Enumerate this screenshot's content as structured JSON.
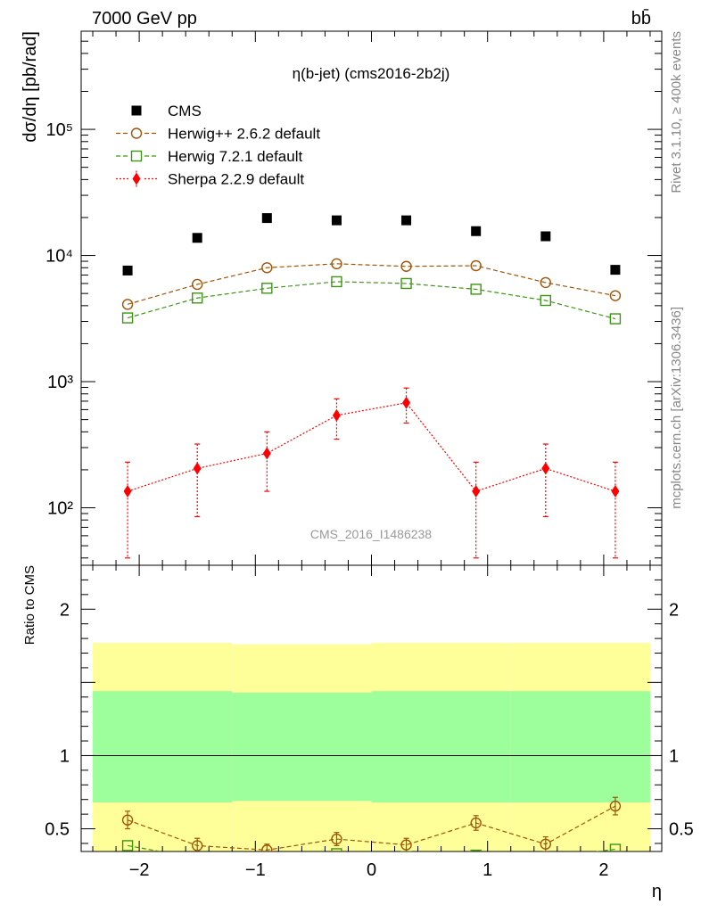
{
  "header": {
    "energy_label": "7000 GeV pp",
    "process_label": "bb̄"
  },
  "side_labels": {
    "rivet": "Rivet 3.1.10, ≥ 400k events",
    "mcplots": "mcplots.cern.ch [arXiv:1306.3436]"
  },
  "chart_data": [
    {
      "type": "scatter",
      "title": "η(b-jet) (cms2016-2b2j)",
      "watermark": "CMS_2016_I1486238",
      "xlabel": "η",
      "ylabel": "dσ/dη [pb/rad]",
      "yscale": "log",
      "xlim": [
        -2.5,
        2.5
      ],
      "ylim": [
        35,
        600000
      ],
      "x": [
        -2.1,
        -1.5,
        -0.9,
        -0.3,
        0.3,
        0.9,
        1.5,
        2.1
      ],
      "y_ticks": [
        {
          "value": 100,
          "label": "10²"
        },
        {
          "value": 1000,
          "label": "10³"
        },
        {
          "value": 10000,
          "label": "10⁴"
        },
        {
          "value": 100000,
          "label": "10⁵"
        }
      ],
      "legend_position": "top-left",
      "series": [
        {
          "name": "CMS",
          "color": "#000000",
          "marker": "square-filled",
          "values": [
            7600,
            13800,
            19800,
            19000,
            19000,
            15600,
            14200,
            7700
          ]
        },
        {
          "name": "Herwig++ 2.6.2 default",
          "color": "#a0540a",
          "marker": "circle-open",
          "line": "dashed",
          "values": [
            4100,
            5900,
            8000,
            8600,
            8200,
            8300,
            6100,
            4800
          ]
        },
        {
          "name": "Herwig 7.2.1 default",
          "color": "#3c9614",
          "marker": "square-open",
          "line": "dashed",
          "values": [
            3200,
            4600,
            5500,
            6200,
            6000,
            5400,
            4400,
            3150
          ]
        },
        {
          "name": "Sherpa 2.2.9 default",
          "color": "#ff0000",
          "marker": "diamond-filled",
          "line": "dotted",
          "values": [
            135,
            205,
            270,
            540,
            680,
            135,
            205,
            135
          ],
          "err_low": [
            95,
            120,
            135,
            190,
            210,
            95,
            120,
            95
          ],
          "err_high": [
            95,
            115,
            130,
            190,
            210,
            95,
            115,
            95
          ]
        }
      ]
    },
    {
      "type": "scatter",
      "ylabel": "Ratio to CMS",
      "xlabel": "η",
      "xlim": [
        -2.5,
        2.5
      ],
      "ylim": [
        0.345,
        2.3
      ],
      "x_ticks": [
        -2,
        -1,
        0,
        1,
        2
      ],
      "x_tick_labels": [
        "−2",
        "−1",
        "0",
        "1",
        "2"
      ],
      "y_ticks": [
        0.5,
        1,
        2
      ],
      "y_tick_labels": [
        "0.5",
        "1",
        "2"
      ],
      "bands": {
        "edges": [
          -2.4,
          -1.2,
          0,
          1.2,
          2.4
        ],
        "yellow": {
          "color": "#ffff9a",
          "lo": [
            0.34,
            0.34,
            0.34,
            0.34
          ],
          "hi": [
            1.77,
            1.76,
            1.77,
            1.77
          ]
        },
        "green": {
          "color": "#9cff9c",
          "lo": [
            0.68,
            0.69,
            0.68,
            0.68
          ],
          "hi": [
            1.44,
            1.43,
            1.44,
            1.44
          ]
        }
      },
      "series": [
        {
          "name": "Herwig++ 2.6.2 default",
          "color": "#a0540a",
          "marker": "circle-open",
          "line": "dashed",
          "values": [
            0.56,
            0.385,
            0.355,
            0.43,
            0.39,
            0.54,
            0.395,
            0.655
          ],
          "err": [
            0.06,
            0.05,
            0.04,
            0.045,
            0.045,
            0.05,
            0.05,
            0.06
          ]
        },
        {
          "name": "Herwig 7.2.1 default",
          "color": "#3c9614",
          "marker": "square-open",
          "line": "dashed",
          "values": [
            0.385,
            0.3,
            0.28,
            0.33,
            0.31,
            0.32,
            0.3,
            0.36
          ],
          "err": [
            0,
            0,
            0,
            0,
            0,
            0,
            0,
            0
          ]
        }
      ]
    }
  ]
}
